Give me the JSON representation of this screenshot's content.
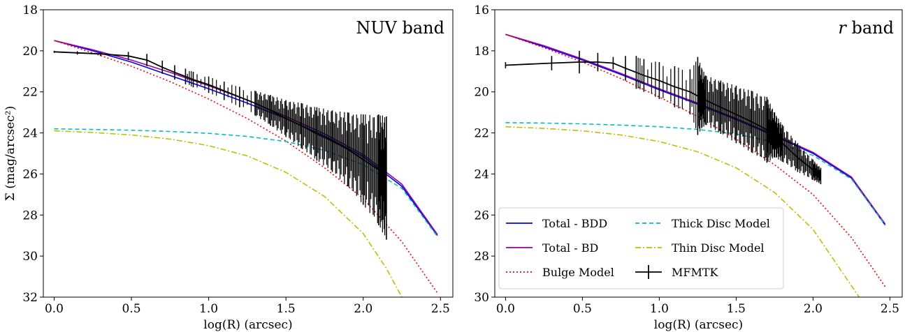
{
  "chart_data": [
    {
      "type": "line",
      "title": "NUV band",
      "title_italic_prefix": "",
      "xlabel": "log(R) (arcsec)",
      "ylabel": "Σ (mag/arcsec²)",
      "xlim": [
        -0.07,
        2.58
      ],
      "ylim": [
        32,
        18
      ],
      "y_inverted": true,
      "xticks": [
        "0.0",
        "0.5",
        "1.0",
        "1.5",
        "2.0",
        "2.5"
      ],
      "yticks": [
        "18",
        "20",
        "22",
        "24",
        "26",
        "28",
        "30",
        "32"
      ],
      "grid": false,
      "legend": "none",
      "series": [
        {
          "name": "Total - BDD",
          "color": "#0000ff",
          "style": "solid",
          "x": [
            0.0,
            0.25,
            0.5,
            0.75,
            1.0,
            1.25,
            1.5,
            1.75,
            2.0,
            2.25,
            2.48
          ],
          "y": [
            19.5,
            20.0,
            20.55,
            21.2,
            21.85,
            22.55,
            23.3,
            24.15,
            25.15,
            26.6,
            29.0
          ]
        },
        {
          "name": "Total - BD",
          "color": "#990099",
          "style": "solid",
          "x": [
            0.0,
            0.25,
            0.5,
            0.75,
            1.0,
            1.25,
            1.5,
            1.75,
            2.0,
            2.25,
            2.48
          ],
          "y": [
            19.5,
            19.95,
            20.45,
            21.05,
            21.7,
            22.4,
            23.2,
            24.05,
            25.05,
            26.5,
            28.95
          ]
        },
        {
          "name": "Bulge Model",
          "color": "#ff0000",
          "style": "dotted",
          "x": [
            0.0,
            0.25,
            0.5,
            0.75,
            1.0,
            1.25,
            1.5,
            1.75,
            2.0,
            2.25,
            2.48
          ],
          "y": [
            19.5,
            20.1,
            20.75,
            21.5,
            22.35,
            23.3,
            24.4,
            25.7,
            27.2,
            29.3,
            31.8
          ]
        },
        {
          "name": "Thick Disc Model",
          "color": "#00bfbf",
          "style": "dashed",
          "x": [
            0.0,
            0.25,
            0.5,
            0.75,
            1.0,
            1.25,
            1.5,
            1.75,
            2.0,
            2.25,
            2.48
          ],
          "y": [
            23.8,
            23.83,
            23.87,
            23.93,
            24.02,
            24.17,
            24.42,
            24.85,
            25.55,
            26.7,
            29.05
          ]
        },
        {
          "name": "Thin Disc Model",
          "color": "#bfbf00",
          "style": "dashdot",
          "x": [
            0.0,
            0.25,
            0.5,
            0.75,
            1.0,
            1.25,
            1.5,
            1.75,
            2.0,
            2.15,
            2.25
          ],
          "y": [
            23.9,
            23.98,
            24.1,
            24.3,
            24.62,
            25.12,
            25.92,
            27.1,
            28.9,
            30.6,
            32.0
          ]
        },
        {
          "name": "MFMTK",
          "color": "#000000",
          "style": "errorbar",
          "x": [
            0.0,
            0.15,
            0.3,
            0.48,
            0.6,
            0.7,
            0.78,
            0.85,
            0.9,
            1.0,
            1.1,
            1.2,
            1.3,
            1.4,
            1.5,
            1.6,
            1.7,
            1.8,
            1.9,
            2.0,
            2.1,
            2.15
          ],
          "y": [
            20.05,
            20.1,
            20.15,
            20.25,
            20.45,
            20.8,
            21.05,
            21.25,
            21.4,
            21.65,
            21.95,
            22.25,
            22.55,
            22.9,
            23.3,
            23.65,
            24.05,
            24.4,
            24.8,
            25.3,
            25.8,
            26.2
          ],
          "err": [
            0.05,
            0.08,
            0.1,
            0.2,
            0.3,
            0.32,
            0.35,
            0.38,
            0.38,
            0.4,
            0.45,
            0.5,
            0.6,
            0.75,
            0.9,
            1.1,
            1.3,
            1.5,
            1.8,
            2.2,
            2.7,
            3.0
          ]
        }
      ]
    },
    {
      "type": "line",
      "title": "band",
      "title_italic_prefix": "r",
      "xlabel": "log(R) (arcsec)",
      "ylabel": "",
      "xlim": [
        -0.07,
        2.58
      ],
      "ylim": [
        30,
        16
      ],
      "y_inverted": true,
      "xticks": [
        "0.0",
        "0.5",
        "1.0",
        "1.5",
        "2.0",
        "2.5"
      ],
      "yticks": [
        "16",
        "18",
        "20",
        "22",
        "24",
        "26",
        "28",
        "30"
      ],
      "grid": false,
      "legend": "lower-left",
      "series": [
        {
          "name": "Total - BDD",
          "color": "#0000ff",
          "style": "solid",
          "x": [
            0.0,
            0.25,
            0.5,
            0.75,
            1.0,
            1.25,
            1.5,
            1.75,
            2.0,
            2.25,
            2.47
          ],
          "y": [
            17.2,
            17.8,
            18.45,
            19.15,
            19.9,
            20.6,
            21.35,
            22.15,
            23.0,
            24.2,
            26.5
          ]
        },
        {
          "name": "Total - BD",
          "color": "#990099",
          "style": "solid",
          "x": [
            0.0,
            0.25,
            0.5,
            0.75,
            1.0,
            1.25,
            1.5,
            1.75,
            2.0,
            2.25,
            2.47
          ],
          "y": [
            17.2,
            17.75,
            18.4,
            19.1,
            19.85,
            20.55,
            21.3,
            22.1,
            22.95,
            24.15,
            26.45
          ]
        },
        {
          "name": "Bulge Model",
          "color": "#ff0000",
          "style": "dotted",
          "x": [
            0.0,
            0.25,
            0.5,
            0.75,
            1.0,
            1.25,
            1.5,
            1.75,
            2.0,
            2.25,
            2.47
          ],
          "y": [
            17.2,
            17.85,
            18.55,
            19.35,
            20.25,
            21.2,
            22.3,
            23.55,
            25.0,
            27.1,
            29.5
          ]
        },
        {
          "name": "Thick Disc Model",
          "color": "#00bfbf",
          "style": "dashed",
          "x": [
            0.0,
            0.25,
            0.5,
            0.75,
            1.0,
            1.25,
            1.5,
            1.75,
            2.0,
            2.25,
            2.47
          ],
          "y": [
            21.5,
            21.52,
            21.56,
            21.62,
            21.7,
            21.83,
            22.05,
            22.45,
            23.1,
            24.25,
            26.5
          ]
        },
        {
          "name": "Thin Disc Model",
          "color": "#bfbf00",
          "style": "dashdot",
          "x": [
            0.0,
            0.25,
            0.5,
            0.75,
            1.0,
            1.25,
            1.5,
            1.75,
            2.0,
            2.2,
            2.3
          ],
          "y": [
            21.7,
            21.78,
            21.9,
            22.1,
            22.42,
            22.92,
            23.7,
            24.9,
            26.7,
            28.9,
            30.0
          ]
        },
        {
          "name": "MFMTK",
          "color": "#000000",
          "style": "errorbar",
          "x": [
            0.0,
            0.3,
            0.48,
            0.6,
            0.7,
            0.78,
            0.85,
            0.9,
            1.0,
            1.1,
            1.2,
            1.25,
            1.3,
            1.4,
            1.5,
            1.6,
            1.7,
            1.75,
            1.8,
            1.9,
            2.0,
            2.05
          ],
          "y": [
            18.7,
            18.6,
            18.55,
            18.55,
            18.6,
            18.85,
            19.05,
            19.2,
            19.45,
            19.75,
            20.0,
            20.2,
            20.4,
            20.75,
            21.1,
            21.45,
            21.85,
            22.1,
            22.5,
            23.2,
            23.8,
            24.1
          ],
          "err": [
            0.15,
            0.35,
            0.55,
            0.45,
            0.3,
            0.6,
            0.8,
            0.8,
            0.9,
            1.0,
            1.1,
            1.9,
            1.2,
            1.3,
            1.4,
            1.5,
            1.6,
            1.1,
            0.9,
            0.7,
            0.5,
            0.4
          ]
        }
      ]
    }
  ]
}
